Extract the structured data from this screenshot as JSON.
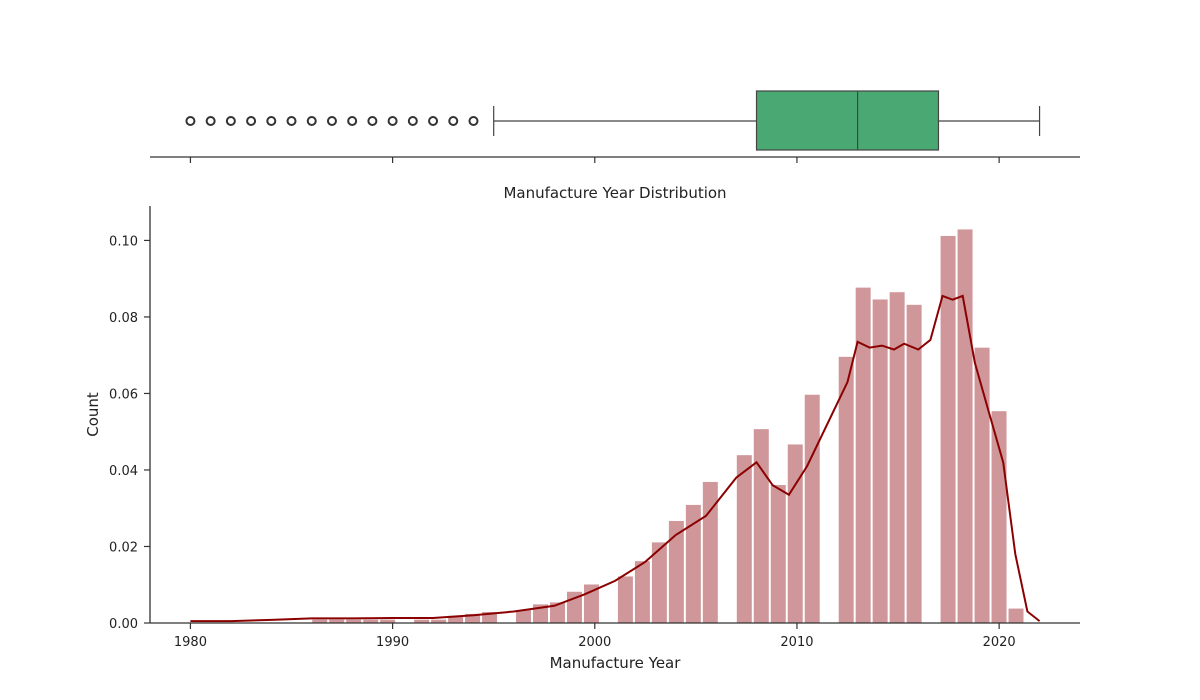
{
  "chart_data": [
    {
      "type": "box",
      "orientation": "horizontal",
      "xlim": [
        1978,
        2024
      ],
      "box": {
        "q1": 2008,
        "median": 2013,
        "q3": 2017,
        "whisker_low": 1995,
        "whisker_high": 2022
      },
      "outliers": [
        1980,
        1981,
        1982,
        1983,
        1984,
        1985,
        1986,
        1987,
        1988,
        1989,
        1990,
        1991,
        1992,
        1993,
        1994
      ],
      "color": "#4aa872"
    },
    {
      "type": "bar",
      "title": "Manufacture Year Distribution",
      "xlabel": "Manufacture Year",
      "ylabel": "Count",
      "xlim": [
        1978,
        2024
      ],
      "ylim": [
        0,
        0.109
      ],
      "xticks": [
        "1980",
        "1990",
        "2000",
        "2010",
        "2020"
      ],
      "yticks": [
        "0.00",
        "0.02",
        "0.04",
        "0.06",
        "0.08",
        "0.10"
      ],
      "bin_width": 0.84,
      "bins": [
        {
          "x": 1980,
          "y": 0.0
        },
        {
          "x": 1986,
          "y": 0.001
        },
        {
          "x": 1986.84,
          "y": 0.001
        },
        {
          "x": 1987.68,
          "y": 0.001
        },
        {
          "x": 1988.52,
          "y": 0.001
        },
        {
          "x": 1989.36,
          "y": 0.001
        },
        {
          "x": 1991.04,
          "y": 0.001
        },
        {
          "x": 1991.88,
          "y": 0.001
        },
        {
          "x": 1992.72,
          "y": 0.002
        },
        {
          "x": 1993.56,
          "y": 0.0025
        },
        {
          "x": 1994.4,
          "y": 0.003
        },
        {
          "x": 1996.08,
          "y": 0.0035
        },
        {
          "x": 1996.92,
          "y": 0.005
        },
        {
          "x": 1997.76,
          "y": 0.0055
        },
        {
          "x": 1998.6,
          "y": 0.0083
        },
        {
          "x": 1999.44,
          "y": 0.0102
        },
        {
          "x": 2001.12,
          "y": 0.0123
        },
        {
          "x": 2001.96,
          "y": 0.0163
        },
        {
          "x": 2002.8,
          "y": 0.0212
        },
        {
          "x": 2003.64,
          "y": 0.0268
        },
        {
          "x": 2004.48,
          "y": 0.031
        },
        {
          "x": 2005.32,
          "y": 0.037
        },
        {
          "x": 2007.0,
          "y": 0.044
        },
        {
          "x": 2007.84,
          "y": 0.0508
        },
        {
          "x": 2008.68,
          "y": 0.0362
        },
        {
          "x": 2009.52,
          "y": 0.0468
        },
        {
          "x": 2010.36,
          "y": 0.0598
        },
        {
          "x": 2012.04,
          "y": 0.0697
        },
        {
          "x": 2012.88,
          "y": 0.0878
        },
        {
          "x": 2013.72,
          "y": 0.0847
        },
        {
          "x": 2014.56,
          "y": 0.0866
        },
        {
          "x": 2015.4,
          "y": 0.0833
        },
        {
          "x": 2017.08,
          "y": 0.1013
        },
        {
          "x": 2017.92,
          "y": 0.103
        },
        {
          "x": 2018.76,
          "y": 0.0721
        },
        {
          "x": 2019.6,
          "y": 0.0555
        },
        {
          "x": 2020.44,
          "y": 0.0039
        }
      ],
      "bar_color": "#cf979a",
      "kde": {
        "color": "#8b0000",
        "x": [
          1980,
          1982,
          1984,
          1986,
          1988,
          1990,
          1992,
          1994,
          1996,
          1998,
          1999.5,
          2001,
          2002.5,
          2004,
          2005.5,
          2007,
          2008,
          2008.8,
          2009.6,
          2010.5,
          2011.5,
          2012.5,
          2013,
          2013.6,
          2014.2,
          2014.8,
          2015.3,
          2016,
          2016.6,
          2017.2,
          2017.7,
          2018.2,
          2018.8,
          2019.5,
          2020.2,
          2020.8,
          2021.4,
          2022
        ],
        "y": [
          0.0005,
          0.0005,
          0.0008,
          0.0012,
          0.0012,
          0.0013,
          0.0013,
          0.002,
          0.003,
          0.0045,
          0.0075,
          0.011,
          0.016,
          0.023,
          0.028,
          0.038,
          0.042,
          0.036,
          0.0335,
          0.041,
          0.052,
          0.063,
          0.0735,
          0.072,
          0.0725,
          0.0715,
          0.073,
          0.0715,
          0.074,
          0.0855,
          0.0845,
          0.0855,
          0.068,
          0.055,
          0.042,
          0.018,
          0.003,
          0.0005
        ]
      }
    }
  ]
}
